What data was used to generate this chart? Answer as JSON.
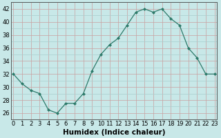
{
  "x": [
    0,
    1,
    2,
    3,
    4,
    5,
    6,
    7,
    8,
    9,
    10,
    11,
    12,
    13,
    14,
    15,
    16,
    17,
    18,
    19,
    20,
    21,
    22,
    23
  ],
  "y": [
    32,
    30.5,
    29.5,
    29,
    26.5,
    26,
    27.5,
    27.5,
    29,
    32.5,
    35,
    36.5,
    37.5,
    39.5,
    41.5,
    42,
    41.5,
    42,
    40.5,
    39.5,
    36,
    34.5,
    32,
    32
  ],
  "line_color": "#2d7a6a",
  "marker": "D",
  "marker_size": 2.0,
  "bg_color": "#c8e8e8",
  "grid_minor_color": "#a8cece",
  "grid_major_color": "#c8a0a0",
  "xlabel": "Humidex (Indice chaleur)",
  "ylim": [
    25.0,
    43.0
  ],
  "yticks": [
    26,
    28,
    30,
    32,
    34,
    36,
    38,
    40,
    42
  ],
  "xticks": [
    0,
    1,
    2,
    3,
    4,
    5,
    6,
    7,
    8,
    9,
    10,
    11,
    12,
    13,
    14,
    15,
    16,
    17,
    18,
    19,
    20,
    21,
    22,
    23
  ],
  "tick_fontsize": 6.0,
  "label_fontsize": 7.5,
  "xlim": [
    -0.3,
    23.3
  ]
}
